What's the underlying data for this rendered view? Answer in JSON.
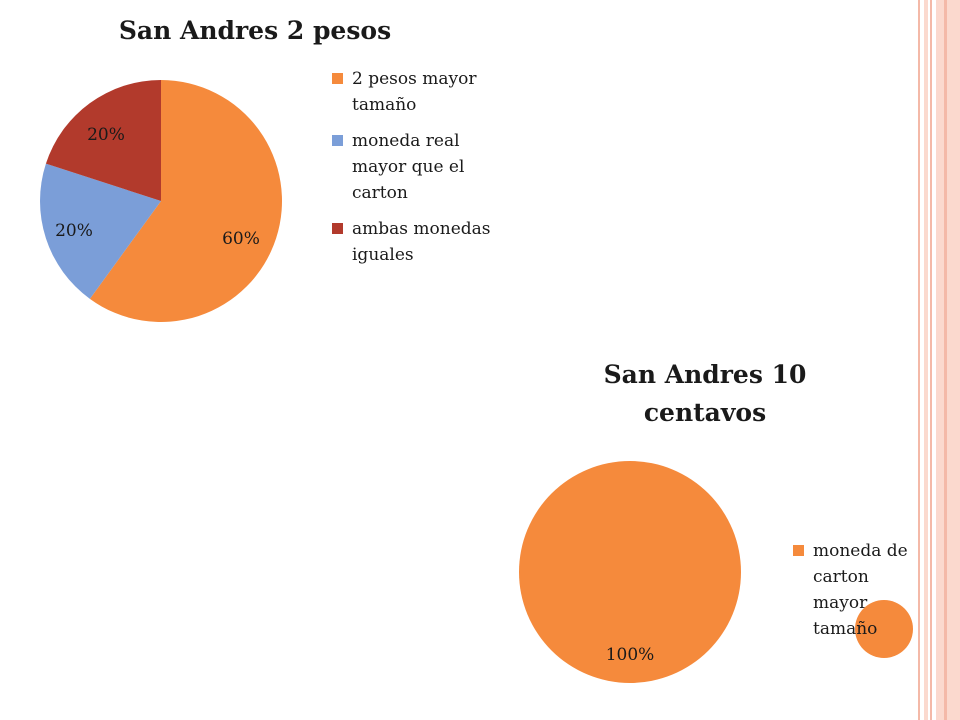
{
  "colors": {
    "orange": "#F58A3C",
    "blue": "#7B9ED8",
    "red": "#B23A2C",
    "border_pink": "#F4B9A8",
    "border_light": "#FBD9CE"
  },
  "chart_data": [
    {
      "type": "pie",
      "title": "San Andres 2 pesos",
      "series": [
        {
          "name": "2 pesos mayor tamaño",
          "value": 60,
          "label": "60%",
          "color": "#F58A3C"
        },
        {
          "name": "moneda real mayor que el carton",
          "value": 20,
          "label": "20%",
          "color": "#7B9ED8"
        },
        {
          "name": "ambas monedas iguales",
          "value": 20,
          "label": "20%",
          "color": "#B23A2C"
        }
      ],
      "legend_position": "right"
    },
    {
      "type": "pie",
      "title": "San Andres 10 centavos",
      "series": [
        {
          "name": "moneda de carton mayor tamaño",
          "value": 100,
          "label": "100%",
          "color": "#F58A3C"
        }
      ],
      "legend_position": "right"
    }
  ]
}
